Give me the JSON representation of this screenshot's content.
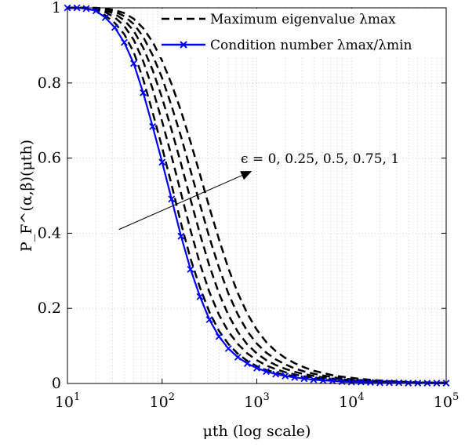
{
  "chart_data": {
    "type": "line",
    "xscale": "log",
    "xlim": [
      10,
      100000
    ],
    "ylim": [
      0,
      1
    ],
    "grid": "on",
    "grid_style": "dotted",
    "xlabel": "μth (log scale)",
    "ylabel": "P_F^(α,β)(μth)",
    "xticks": [
      10,
      100,
      1000,
      10000,
      100000
    ],
    "xtick_labels": [
      {
        "base": "10",
        "exp": "1"
      },
      {
        "base": "10",
        "exp": "2"
      },
      {
        "base": "10",
        "exp": "3"
      },
      {
        "base": "10",
        "exp": "4"
      },
      {
        "base": "10",
        "exp": "5"
      }
    ],
    "yticks": [
      0,
      0.2,
      0.4,
      0.6,
      0.8,
      1
    ],
    "ytick_labels": [
      "0",
      "0.2",
      "0.4",
      "0.6",
      "0.8",
      "1"
    ],
    "legend": {
      "position": "top-right",
      "entries": [
        {
          "label": "Maximum eigenvalue λmax",
          "style": "dashed",
          "color": "#000000"
        },
        {
          "label": "Condition number λmax/λmin",
          "style": "solid-x",
          "color": "#0000ff"
        }
      ]
    },
    "annotation": {
      "text": "ϵ = 0, 0.25, 0.5, 0.75, 1",
      "arrow_from": [
        35,
        0.41
      ],
      "arrow_to": [
        1000,
        0.57
      ]
    },
    "series": [
      {
        "group": "Maximum eigenvalue λmax",
        "eps": 0,
        "style": "dashed",
        "color": "#000000",
        "x": [
          10,
          12.6,
          15.8,
          20,
          25.1,
          31.6,
          39.8,
          50.1,
          63.1,
          79.4,
          100,
          125.9,
          158.5,
          199.5,
          251.2,
          316.2,
          398.1,
          501.2,
          631,
          794.3,
          1000,
          1259,
          1585,
          1995,
          2512,
          3162,
          3981,
          5012,
          6310,
          7943,
          10000,
          12589,
          15849,
          19953,
          25119,
          31623,
          39811,
          50119,
          63096,
          79433,
          100000
        ],
        "y": [
          1,
          1,
          0.999,
          0.995,
          0.98,
          0.96,
          0.93,
          0.882,
          0.81,
          0.721,
          0.628,
          0.529,
          0.426,
          0.332,
          0.255,
          0.19,
          0.14,
          0.105,
          0.079,
          0.06,
          0.046,
          0.036,
          0.029,
          0.023,
          0.019,
          0.015,
          0.012,
          0.01,
          0.008,
          0.007,
          0.006,
          0.005,
          0.004,
          0.003,
          0.003,
          0.002,
          0.002,
          0.001,
          0.001,
          0.001,
          0.001
        ]
      },
      {
        "group": "Maximum eigenvalue λmax",
        "eps": 0.25,
        "style": "dashed",
        "color": "#000000",
        "x": [
          10,
          12.6,
          15.8,
          20,
          25.1,
          31.6,
          39.8,
          50.1,
          63.1,
          79.4,
          100,
          125.9,
          158.5,
          199.5,
          251.2,
          316.2,
          398.1,
          501.2,
          631,
          794.3,
          1000,
          1259,
          1585,
          1995,
          2512,
          3162,
          3981,
          5012,
          6310,
          7943,
          10000,
          12589,
          15849,
          19953,
          25119,
          31623,
          39811,
          50119,
          63096,
          79433,
          100000
        ],
        "y": [
          1,
          1,
          0.999,
          0.997,
          0.988,
          0.975,
          0.952,
          0.915,
          0.858,
          0.784,
          0.697,
          0.605,
          0.506,
          0.408,
          0.318,
          0.243,
          0.183,
          0.138,
          0.105,
          0.08,
          0.062,
          0.048,
          0.038,
          0.03,
          0.024,
          0.019,
          0.016,
          0.013,
          0.011,
          0.009,
          0.007,
          0.006,
          0.005,
          0.004,
          0.003,
          0.003,
          0.002,
          0.002,
          0.002,
          0.001,
          0.001
        ]
      },
      {
        "group": "Maximum eigenvalue λmax",
        "eps": 0.5,
        "style": "dashed",
        "color": "#000000",
        "x": [
          10,
          12.6,
          15.8,
          20,
          25.1,
          31.6,
          39.8,
          50.1,
          63.1,
          79.4,
          100,
          125.9,
          158.5,
          199.5,
          251.2,
          316.2,
          398.1,
          501.2,
          631,
          794.3,
          1000,
          1259,
          1585,
          1995,
          2512,
          3162,
          3981,
          5012,
          6310,
          7943,
          10000,
          12589,
          15849,
          19953,
          25119,
          31623,
          39811,
          50119,
          63096,
          79433,
          100000
        ],
        "y": [
          1,
          1,
          1,
          0.998,
          0.993,
          0.984,
          0.967,
          0.939,
          0.894,
          0.834,
          0.76,
          0.675,
          0.585,
          0.49,
          0.397,
          0.313,
          0.24,
          0.182,
          0.137,
          0.104,
          0.08,
          0.062,
          0.049,
          0.039,
          0.031,
          0.025,
          0.02,
          0.016,
          0.013,
          0.011,
          0.009,
          0.007,
          0.006,
          0.005,
          0.004,
          0.003,
          0.003,
          0.002,
          0.002,
          0.002,
          0.001
        ]
      },
      {
        "group": "Maximum eigenvalue λmax",
        "eps": 0.75,
        "style": "dashed",
        "color": "#000000",
        "x": [
          10,
          12.6,
          15.8,
          20,
          25.1,
          31.6,
          39.8,
          50.1,
          63.1,
          79.4,
          100,
          125.9,
          158.5,
          199.5,
          251.2,
          316.2,
          398.1,
          501.2,
          631,
          794.3,
          1000,
          1259,
          1585,
          1995,
          2512,
          3162,
          3981,
          5012,
          6310,
          7943,
          10000,
          12589,
          15849,
          19953,
          25119,
          31623,
          39811,
          50119,
          63096,
          79433,
          100000
        ],
        "y": [
          1,
          1,
          1,
          0.999,
          0.996,
          0.99,
          0.978,
          0.957,
          0.923,
          0.874,
          0.813,
          0.739,
          0.657,
          0.567,
          0.476,
          0.388,
          0.309,
          0.239,
          0.183,
          0.139,
          0.106,
          0.082,
          0.064,
          0.051,
          0.04,
          0.032,
          0.026,
          0.021,
          0.017,
          0.013,
          0.011,
          0.009,
          0.007,
          0.006,
          0.005,
          0.004,
          0.003,
          0.003,
          0.002,
          0.002,
          0.002
        ]
      },
      {
        "group": "Maximum eigenvalue λmax",
        "eps": 1,
        "style": "dashed",
        "color": "#000000",
        "x": [
          10,
          12.6,
          15.8,
          20,
          25.1,
          31.6,
          39.8,
          50.1,
          63.1,
          79.4,
          100,
          125.9,
          158.5,
          199.5,
          251.2,
          316.2,
          398.1,
          501.2,
          631,
          794.3,
          1000,
          1259,
          1585,
          1995,
          2512,
          3162,
          3981,
          5012,
          6310,
          7943,
          10000,
          12589,
          15849,
          19953,
          25119,
          31623,
          39811,
          50119,
          63096,
          79433,
          100000
        ],
        "y": [
          1,
          1,
          1,
          1,
          0.998,
          0.994,
          0.986,
          0.971,
          0.946,
          0.909,
          0.859,
          0.797,
          0.725,
          0.643,
          0.556,
          0.468,
          0.384,
          0.306,
          0.24,
          0.186,
          0.143,
          0.11,
          0.086,
          0.068,
          0.054,
          0.043,
          0.034,
          0.028,
          0.022,
          0.018,
          0.015,
          0.012,
          0.01,
          0.008,
          0.006,
          0.005,
          0.004,
          0.003,
          0.003,
          0.002,
          0.002
        ]
      },
      {
        "group": "Condition number λmax/λmin",
        "style": "solid-x",
        "color": "#0000ff",
        "x": [
          10,
          12.6,
          15.8,
          20,
          25.1,
          31.6,
          39.8,
          50.1,
          63.1,
          79.4,
          100,
          125.9,
          158.5,
          199.5,
          251.2,
          316.2,
          398.1,
          501.2,
          631,
          794.3,
          1000,
          1259,
          1585,
          1995,
          2512,
          3162,
          3981,
          5012,
          6310,
          7943,
          10000,
          12589,
          15849,
          19953,
          25119,
          31623,
          39811,
          50119,
          63096,
          79433,
          100000
        ],
        "y": [
          1,
          1,
          0.998,
          0.992,
          0.974,
          0.948,
          0.908,
          0.852,
          0.774,
          0.684,
          0.589,
          0.491,
          0.392,
          0.304,
          0.231,
          0.17,
          0.125,
          0.093,
          0.07,
          0.053,
          0.041,
          0.032,
          0.025,
          0.02,
          0.016,
          0.013,
          0.01,
          0.008,
          0.007,
          0.005,
          0.004,
          0.004,
          0.003,
          0.002,
          0.002,
          0.002,
          0.001,
          0.001,
          0.001,
          0.001,
          0.001
        ]
      }
    ]
  }
}
